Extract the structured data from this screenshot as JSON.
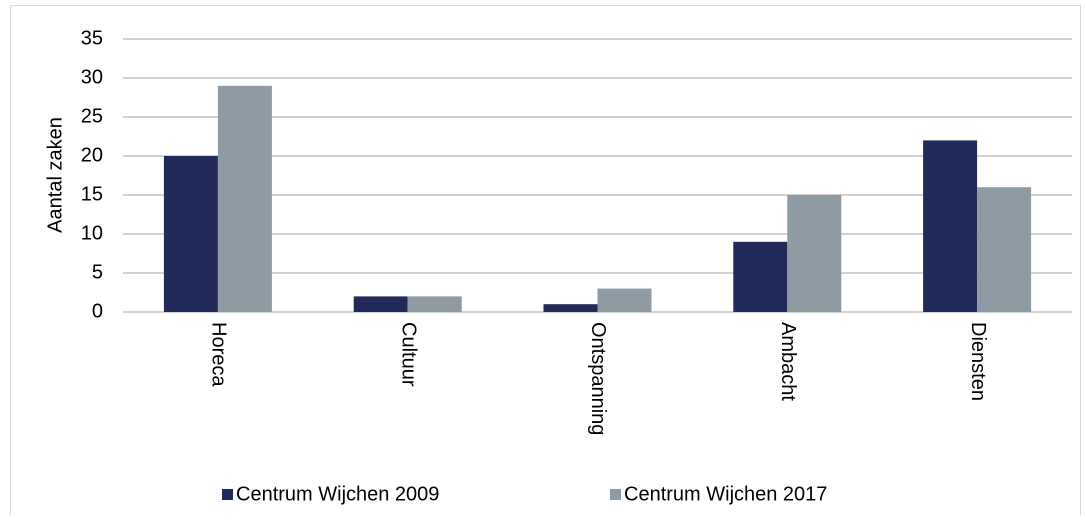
{
  "chart_data": {
    "type": "bar",
    "y_label": "Aantal zaken",
    "categories": [
      "Horeca",
      "Cultuur",
      "Ontspanning",
      "Ambacht",
      "Diensten"
    ],
    "series": [
      {
        "name": "Centrum Wijchen 2009",
        "color": "#222a5a",
        "values": [
          20,
          2,
          1,
          9,
          22
        ]
      },
      {
        "name": "Centrum Wijchen 2017",
        "color": "#8f9ba3",
        "values": [
          29,
          2,
          3,
          15,
          16
        ]
      }
    ],
    "ylim": [
      0,
      35
    ],
    "yticks": [
      0,
      5,
      10,
      15,
      20,
      25,
      30,
      35
    ],
    "grid": true,
    "legend": "bottom"
  }
}
